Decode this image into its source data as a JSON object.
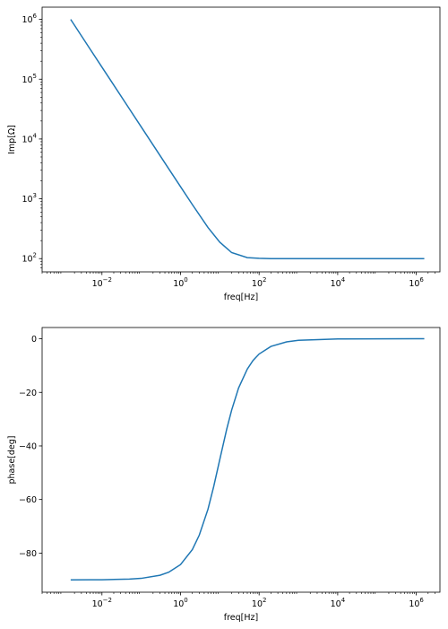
{
  "chart_data": [
    {
      "type": "line",
      "title": "",
      "xlabel": "freq[Hz]",
      "ylabel": "Imp[Ω]",
      "xscale": "log",
      "yscale": "log",
      "xlim": [
        0.0003,
        4000000
      ],
      "ylim": [
        60,
        1600000
      ],
      "xticks": [
        0.01,
        1,
        100,
        10000,
        1000000
      ],
      "xtick_labels": [
        {
          "base": "10",
          "exp": "−2"
        },
        {
          "base": "10",
          "exp": "0"
        },
        {
          "base": "10",
          "exp": "2"
        },
        {
          "base": "10",
          "exp": "4"
        },
        {
          "base": "10",
          "exp": "6"
        }
      ],
      "yticks": [
        100,
        1000,
        10000,
        100000,
        1000000
      ],
      "ytick_labels": [
        {
          "base": "10",
          "exp": "2"
        },
        {
          "base": "10",
          "exp": "3"
        },
        {
          "base": "10",
          "exp": "4"
        },
        {
          "base": "10",
          "exp": "5"
        },
        {
          "base": "10",
          "exp": "6"
        }
      ],
      "grid": false,
      "legend": "none",
      "series": [
        {
          "color": "#1f77b4",
          "x": [
            0.0016,
            0.005,
            0.01,
            0.05,
            0.1,
            0.5,
            1,
            2,
            5,
            10,
            20,
            50,
            100,
            200,
            500,
            1000,
            10000,
            100000,
            1000000,
            1600000
          ],
          "y": [
            1000000,
            318310,
            159155,
            31831,
            15916,
            3185,
            1595,
            800,
            331,
            188,
            126,
            104,
            101,
            100,
            100,
            100,
            100,
            100,
            100,
            100
          ]
        }
      ]
    },
    {
      "type": "line",
      "title": "",
      "xlabel": "freq[Hz]",
      "ylabel": "phase[deg]",
      "xscale": "log",
      "yscale": "linear",
      "xlim": [
        0.0003,
        4000000
      ],
      "ylim": [
        -94.6,
        4.2
      ],
      "xticks": [
        0.01,
        1,
        100,
        10000,
        1000000
      ],
      "xtick_labels": [
        {
          "base": "10",
          "exp": "−2"
        },
        {
          "base": "10",
          "exp": "0"
        },
        {
          "base": "10",
          "exp": "2"
        },
        {
          "base": "10",
          "exp": "4"
        },
        {
          "base": "10",
          "exp": "6"
        }
      ],
      "yticks": [
        0,
        -20,
        -40,
        -60,
        -80
      ],
      "ytick_labels": [
        "0",
        "−20",
        "−40",
        "−60",
        "−80"
      ],
      "grid": false,
      "legend": "none",
      "series": [
        {
          "color": "#1f77b4",
          "x": [
            0.0016,
            0.005,
            0.01,
            0.05,
            0.1,
            0.3,
            0.5,
            1,
            2,
            3,
            5,
            7,
            10,
            15,
            20,
            30,
            50,
            70,
            100,
            200,
            500,
            1000,
            10000,
            100000,
            1000000,
            1600000
          ],
          "y": [
            -89.99,
            -89.97,
            -89.94,
            -89.71,
            -89.43,
            -88.28,
            -87.14,
            -84.29,
            -78.69,
            -73.3,
            -63.61,
            -55.1,
            -45,
            -33.7,
            -26.62,
            -18.38,
            -11.33,
            -8.09,
            -5.69,
            -2.86,
            -1.15,
            -0.57,
            -0.06,
            -0.01,
            0,
            0
          ]
        }
      ]
    }
  ]
}
